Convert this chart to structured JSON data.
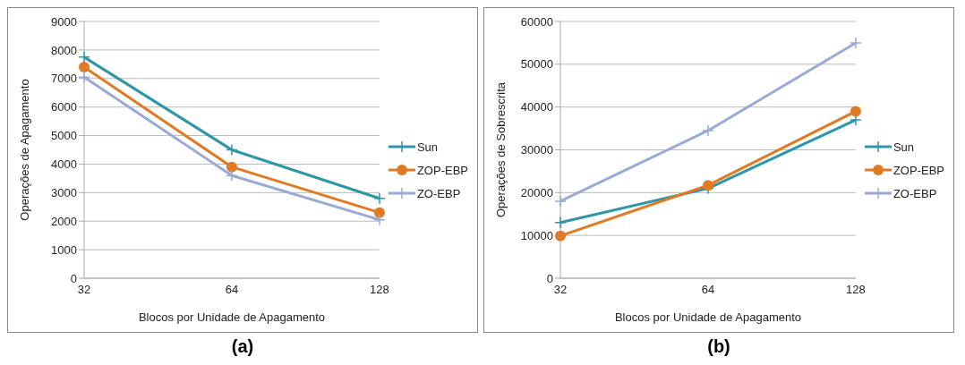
{
  "chart_data": [
    {
      "type": "line",
      "title": "(a)",
      "xlabel": "Blocos por Unidade de Apagamento",
      "ylabel": "Operações de Apagamento",
      "categories": [
        "32",
        "64",
        "128"
      ],
      "ylim": [
        0,
        9000
      ],
      "yticks": [
        0,
        1000,
        2000,
        3000,
        4000,
        5000,
        6000,
        7000,
        8000,
        9000
      ],
      "grid": "y",
      "legend": "right",
      "series": [
        {
          "name": "Sun",
          "color": "#2e96a8",
          "marker": "cross",
          "values": [
            7750,
            4500,
            2800
          ]
        },
        {
          "name": "ZOP-EBP",
          "color": "#e07b24",
          "marker": "circle",
          "values": [
            7400,
            3900,
            2300
          ]
        },
        {
          "name": "ZO-EBP",
          "color": "#9aa9d6",
          "marker": "cross",
          "values": [
            7050,
            3600,
            2050
          ]
        }
      ]
    },
    {
      "type": "line",
      "title": "(b)",
      "xlabel": "Blocos por Unidade de Apagamento",
      "ylabel": "Operações de Sobrescrita",
      "categories": [
        "32",
        "64",
        "128"
      ],
      "ylim": [
        0,
        60000
      ],
      "yticks": [
        0,
        10000,
        20000,
        30000,
        40000,
        50000,
        60000
      ],
      "grid": "y",
      "legend": "right",
      "series": [
        {
          "name": "Sun",
          "color": "#2e96a8",
          "marker": "cross",
          "values": [
            13000,
            21000,
            37000
          ]
        },
        {
          "name": "ZOP-EBP",
          "color": "#e07b24",
          "marker": "circle",
          "values": [
            9900,
            21700,
            39000
          ]
        },
        {
          "name": "ZO-EBP",
          "color": "#9aa9d6",
          "marker": "cross",
          "values": [
            18000,
            34500,
            55000
          ]
        }
      ]
    }
  ]
}
